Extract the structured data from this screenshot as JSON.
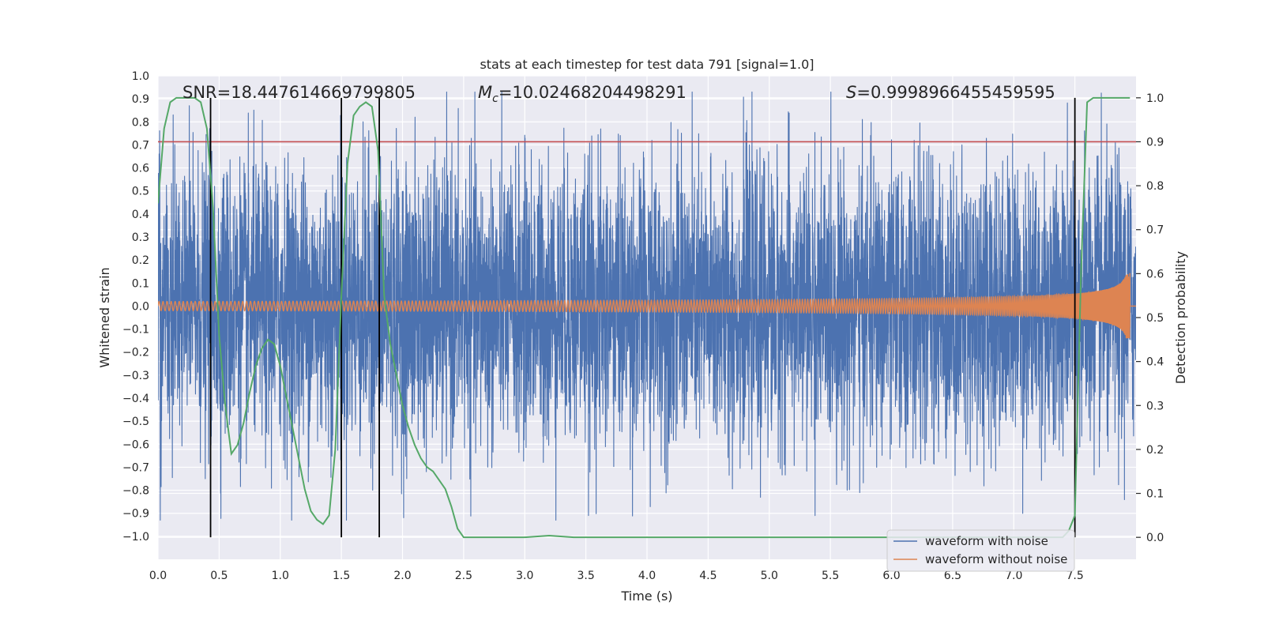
{
  "chart_data": {
    "type": "line",
    "title": "stats at each timestep for test data 791 [signal=1.0]",
    "xlabel": "Time (s)",
    "ylabel": "Whitened strain",
    "y2label": "Detection probability",
    "xlim": [
      0.0,
      8.0
    ],
    "ylim": [
      -1.1,
      1.0
    ],
    "y2lim": [
      -0.05,
      1.05
    ],
    "xticks": [
      "0.0",
      "0.5",
      "1.0",
      "1.5",
      "2.0",
      "2.5",
      "3.0",
      "3.5",
      "4.0",
      "4.5",
      "5.0",
      "5.5",
      "6.0",
      "6.5",
      "7.0",
      "7.5"
    ],
    "yticks": [
      "1.0",
      "0.9",
      "0.8",
      "0.7",
      "0.6",
      "0.5",
      "0.4",
      "0.3",
      "0.2",
      "0.1",
      "0.0",
      "−0.1",
      "−0.2",
      "−0.3",
      "−0.4",
      "−0.5",
      "−0.6",
      "−0.7",
      "−0.8",
      "−0.9",
      "−1.0"
    ],
    "y2ticks": [
      "1.0",
      "0.9",
      "0.8",
      "0.7",
      "0.6",
      "0.5",
      "0.4",
      "0.3",
      "0.2",
      "0.1",
      "0.0"
    ],
    "grid": true,
    "legend_position": "lower-right",
    "annotations": {
      "snr": "SNR=18.447614669799805",
      "mc_symbol": "M",
      "mc_sub": "c",
      "mc_value": "=10.02468204498291",
      "s_symbol": "S",
      "s_value": "=0.9998966455459595"
    },
    "threshold": {
      "axis": "y2",
      "value": 0.9,
      "color": "#c44e52"
    },
    "vertical_lines": [
      0.43,
      1.5,
      1.81,
      7.5
    ],
    "series": [
      {
        "name": "waveform with noise",
        "color": "#4c72b0",
        "kind": "noise",
        "amplitude": 0.3,
        "peak": 0.93
      },
      {
        "name": "waveform without noise",
        "color": "#dd8452",
        "kind": "chirp",
        "t_merge": 7.95,
        "amplitude_start": 0.02,
        "amplitude_end": 0.48
      },
      {
        "name": "",
        "color": "#55a868",
        "axis": "y2",
        "x": [
          0.0,
          0.05,
          0.1,
          0.15,
          0.2,
          0.25,
          0.3,
          0.35,
          0.4,
          0.45,
          0.5,
          0.55,
          0.6,
          0.65,
          0.7,
          0.75,
          0.8,
          0.85,
          0.9,
          0.95,
          1.0,
          1.05,
          1.1,
          1.15,
          1.2,
          1.25,
          1.3,
          1.35,
          1.4,
          1.45,
          1.5,
          1.55,
          1.6,
          1.65,
          1.7,
          1.75,
          1.8,
          1.85,
          1.9,
          1.95,
          2.0,
          2.05,
          2.1,
          2.15,
          2.2,
          2.25,
          2.3,
          2.35,
          2.4,
          2.45,
          2.5,
          2.6,
          2.8,
          3.0,
          3.2,
          3.4,
          3.8,
          4.0,
          5.0,
          6.0,
          7.0,
          7.3,
          7.4,
          7.45,
          7.5,
          7.55,
          7.6,
          7.65,
          7.7,
          7.8,
          7.9,
          7.95
        ],
        "y": [
          0.76,
          0.93,
          0.99,
          1.0,
          1.0,
          1.0,
          1.0,
          0.99,
          0.93,
          0.75,
          0.46,
          0.3,
          0.19,
          0.21,
          0.26,
          0.33,
          0.39,
          0.43,
          0.45,
          0.44,
          0.39,
          0.32,
          0.25,
          0.18,
          0.11,
          0.06,
          0.04,
          0.03,
          0.05,
          0.2,
          0.55,
          0.85,
          0.96,
          0.98,
          0.99,
          0.98,
          0.88,
          0.55,
          0.44,
          0.37,
          0.3,
          0.25,
          0.21,
          0.18,
          0.16,
          0.15,
          0.13,
          0.11,
          0.07,
          0.02,
          0.0,
          0.0,
          0.0,
          0.0,
          0.004,
          0.0,
          0.0,
          0.0,
          0.0,
          0.0,
          0.0,
          0.0,
          0.0,
          0.015,
          0.05,
          0.6,
          0.99,
          1.0,
          1.0,
          1.0,
          1.0,
          1.0
        ]
      }
    ]
  }
}
